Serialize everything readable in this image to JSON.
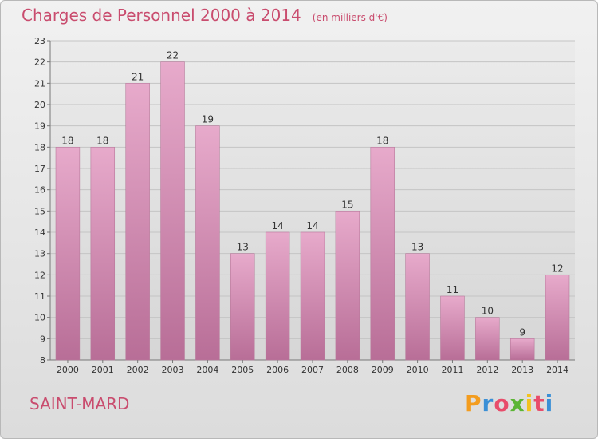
{
  "header": {
    "title": "Charges de Personnel 2000 à 2014",
    "unit": "(en milliers d'€)"
  },
  "footer": {
    "place": "SAINT-MARD",
    "logo_letters": [
      "P",
      "r",
      "o",
      "x",
      "i",
      "t",
      "i"
    ],
    "logo_colors": [
      "#f39c1e",
      "#3a8fd6",
      "#e84c6a",
      "#5bb534",
      "#f3c21e",
      "#e84c6a",
      "#3a8fd6"
    ]
  },
  "chart_data": {
    "type": "bar",
    "title": "Charges de Personnel 2000 à 2014",
    "subtitle": "(en milliers d'€)",
    "categories": [
      "2000",
      "2001",
      "2002",
      "2003",
      "2004",
      "2005",
      "2006",
      "2007",
      "2008",
      "2009",
      "2010",
      "2011",
      "2012",
      "2013",
      "2014"
    ],
    "values": [
      18,
      18,
      21,
      22,
      19,
      13,
      14,
      14,
      15,
      18,
      13,
      11,
      10,
      9,
      12
    ],
    "ylim": [
      8,
      23
    ],
    "yticks": [
      8,
      9,
      10,
      11,
      12,
      13,
      14,
      15,
      16,
      17,
      18,
      19,
      20,
      21,
      22,
      23
    ],
    "grid": true,
    "bar_color": "#d98cb3"
  }
}
